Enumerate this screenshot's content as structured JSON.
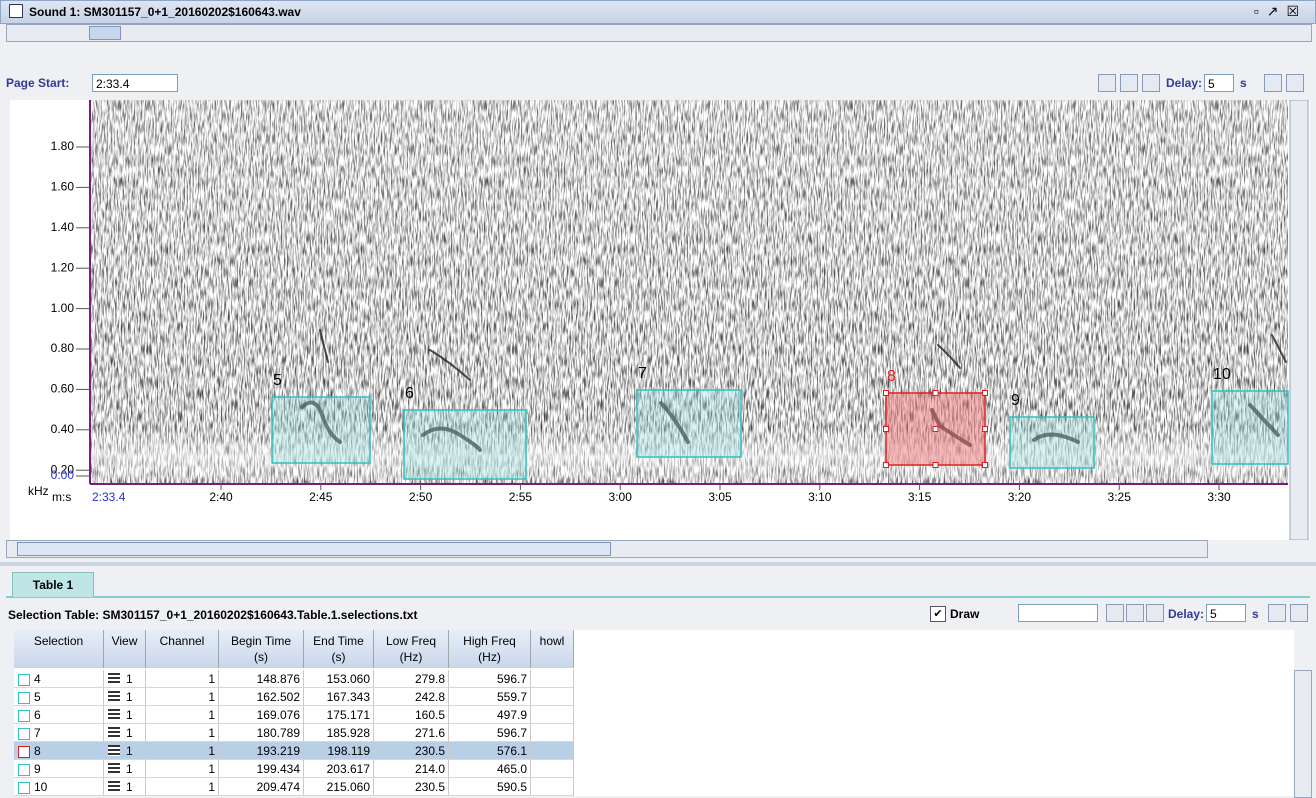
{
  "window": {
    "title": "Sound 1: SM301157_0+1_20160202$160643.wav"
  },
  "toolbar": {
    "page_start_label": "Page Start:",
    "page_start": "2:33.4",
    "delay_label": "Delay:",
    "delay": "5",
    "delay_unit": "s"
  },
  "spectrogram": {
    "y_labels": [
      "1.80",
      "1.60",
      "1.40",
      "1.20",
      "1.00",
      "0.80",
      "0.60",
      "0.40",
      "0.20",
      "0.00"
    ],
    "y_unit": "kHz",
    "x_unit": "m:s",
    "x_start": "2:33.4",
    "x_labels": [
      "2:40",
      "2:45",
      "2:50",
      "2:55",
      "3:00",
      "3:05",
      "3:10",
      "3:15",
      "3:20",
      "3:25",
      "3:30"
    ],
    "selections": [
      {
        "label": "5"
      },
      {
        "label": "6"
      },
      {
        "label": "7"
      },
      {
        "label": "8"
      },
      {
        "label": "9"
      },
      {
        "label": "10"
      }
    ]
  },
  "table": {
    "tab": "Table 1",
    "title": "Selection Table: SM301157_0+1_20160202$160643.Table.1.selections.txt",
    "draw_label": "Draw",
    "delay_label": "Delay:",
    "delay": "5",
    "delay_unit": "s",
    "columns": [
      [
        "Selection"
      ],
      [
        "View"
      ],
      [
        "Channel"
      ],
      [
        "Begin Time",
        "(s)"
      ],
      [
        "End Time",
        "(s)"
      ],
      [
        "Low Freq",
        "(Hz)"
      ],
      [
        "High Freq",
        "(Hz)"
      ],
      [
        "howl"
      ]
    ],
    "rows": [
      [
        "4",
        "1",
        "1",
        "148.876",
        "153.060",
        "279.8",
        "596.7"
      ],
      [
        "5",
        "1",
        "1",
        "162.502",
        "167.343",
        "242.8",
        "559.7"
      ],
      [
        "6",
        "1",
        "1",
        "169.076",
        "175.171",
        "160.5",
        "497.9"
      ],
      [
        "7",
        "1",
        "1",
        "180.789",
        "185.928",
        "271.6",
        "596.7"
      ],
      [
        "8",
        "1",
        "1",
        "193.219",
        "198.119",
        "230.5",
        "576.1"
      ],
      [
        "9",
        "1",
        "1",
        "199.434",
        "203.617",
        "214.0",
        "465.0"
      ],
      [
        "10",
        "1",
        "1",
        "209.474",
        "215.060",
        "230.5",
        "590.5"
      ]
    ]
  }
}
